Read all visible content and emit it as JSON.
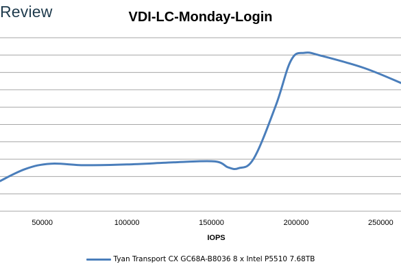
{
  "watermark": "Review",
  "chart_data": {
    "type": "line",
    "title": "VDI-LC-Monday-Login",
    "xlabel": "IOPS",
    "ylabel": "",
    "x_ticks": [
      50000,
      100000,
      150000,
      200000,
      250000
    ],
    "x_tick_labels": [
      "50000",
      "100000",
      "150000",
      "200000",
      "250000"
    ],
    "xlim": [
      25000,
      262000
    ],
    "grid": true,
    "legend_position": "bottom",
    "series": [
      {
        "name": "Tyan Transport CX GC68A-B8036 8 x Intel P5510 7.68TB",
        "color": "#4a7ebb",
        "x": [
          25000,
          40000,
          55000,
          75000,
          100000,
          130000,
          152000,
          160000,
          166000,
          175000,
          188000,
          197000,
          205000,
          215000,
          240000,
          262000
        ],
        "y": [
          20,
          28,
          31.5,
          30.5,
          31,
          32.5,
          33,
          29,
          28.5,
          35,
          70,
          100,
          105,
          103,
          95,
          85
        ]
      }
    ]
  }
}
